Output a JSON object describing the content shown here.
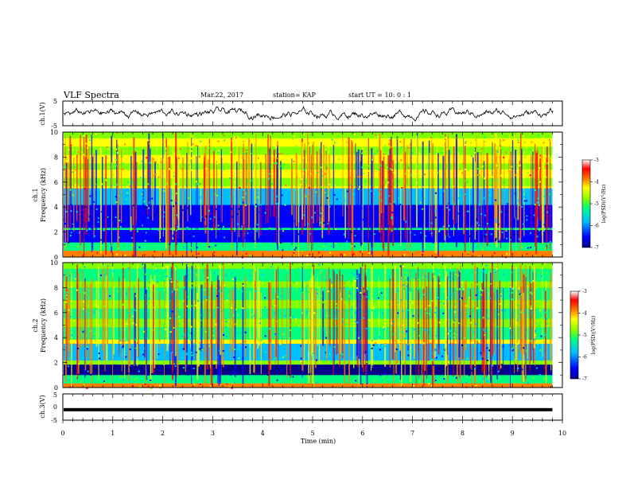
{
  "header": {
    "title": "VLF Spectra",
    "date": "Mar.22, 2017",
    "station": "station= KAP",
    "start": "start  UT =  10: 0  : 1"
  },
  "chart_data": [
    {
      "type": "line",
      "panel": "ch1-waveform",
      "ylabel": "ch.1(V)",
      "ylim": [
        -5,
        5
      ],
      "yticks": [
        "5",
        "-5"
      ],
      "xlim": [
        0,
        10
      ],
      "x_range": [
        0,
        9.8
      ],
      "y_level": 0,
      "color": "#000000"
    },
    {
      "type": "heatmap",
      "panel": "ch1-spectrogram",
      "ylabel": "ch.1\nFrequency  (kHz)",
      "ylim": [
        0,
        10
      ],
      "yticks": [
        "0",
        "2",
        "4",
        "6",
        "8",
        "10"
      ],
      "xlim": [
        0,
        10
      ],
      "x_range": [
        0,
        9.8
      ],
      "colorbar": {
        "label": "log(PSD)(V²/Hz)",
        "ticks": [
          "-3",
          "-4",
          "-5",
          "-6",
          "-7"
        ],
        "range": [
          -7,
          -3
        ]
      }
    },
    {
      "type": "heatmap",
      "panel": "ch2-spectrogram",
      "ylabel": "ch.2\nFrequency  (kHz)",
      "ylim": [
        0,
        10
      ],
      "yticks": [
        "0",
        "2",
        "4",
        "6",
        "8",
        "10"
      ],
      "xlim": [
        0,
        10
      ],
      "x_range": [
        0,
        9.8
      ],
      "colorbar": {
        "label": "log(PSD)(V²/Hz)",
        "ticks": [
          "-3",
          "-4",
          "-5",
          "-6",
          "-7"
        ],
        "range": [
          -7,
          -3
        ]
      }
    },
    {
      "type": "line",
      "panel": "ch3-waveform",
      "ylabel": "ch.3(V)",
      "ylim": [
        -5,
        5
      ],
      "yticks": [
        "5",
        "0",
        "-5"
      ],
      "xlim": [
        0,
        10
      ],
      "x_range": [
        0,
        9.8
      ],
      "y_level": -1,
      "color": "#000000"
    }
  ],
  "x_axis": {
    "label": "Time  (min)",
    "ticks": [
      "0",
      "1",
      "2",
      "3",
      "4",
      "5",
      "6",
      "7",
      "8",
      "9",
      "10"
    ]
  },
  "colors": {
    "scale": [
      "#00008b",
      "#0000ff",
      "#00bfff",
      "#00ff80",
      "#80ff00",
      "#ffff00",
      "#ff8000",
      "#ff0000",
      "#ffffff"
    ]
  }
}
